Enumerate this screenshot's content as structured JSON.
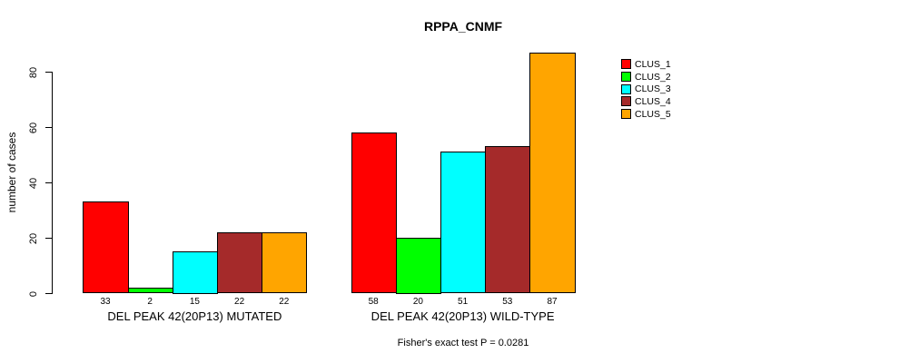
{
  "page": {
    "background_color": "#FFFFFF",
    "text_color": "#000000"
  },
  "chart_data": {
    "type": "bar",
    "title": "RPPA_CNMF",
    "ylabel": "number of cases",
    "xlabel": "",
    "ylim": [
      0,
      87
    ],
    "yticks": [
      0,
      20,
      40,
      60,
      80
    ],
    "grid": false,
    "legend_position": "right",
    "categories": [
      "DEL PEAK 42(20P13) MUTATED",
      "DEL PEAK 42(20P13) WILD-TYPE"
    ],
    "series": [
      {
        "name": "CLUS_1",
        "color": "#FF0000",
        "values": [
          33,
          58
        ]
      },
      {
        "name": "CLUS_2",
        "color": "#00FF00",
        "values": [
          2,
          20
        ]
      },
      {
        "name": "CLUS_3",
        "color": "#00FFFF",
        "values": [
          15,
          51
        ]
      },
      {
        "name": "CLUS_4",
        "color": "#A52A2A",
        "values": [
          22,
          53
        ]
      },
      {
        "name": "CLUS_5",
        "color": "#FFA500",
        "values": [
          22,
          87
        ]
      }
    ],
    "bar_value_labels": {
      "DEL PEAK 42(20P13) MUTATED": [
        33,
        2,
        15,
        22,
        22
      ],
      "DEL PEAK 42(20P13) WILD-TYPE": [
        58,
        20,
        51,
        53,
        87
      ]
    },
    "bar_border_color": "#000000",
    "footnote": "Fisher's exact test P = 0.0281"
  }
}
